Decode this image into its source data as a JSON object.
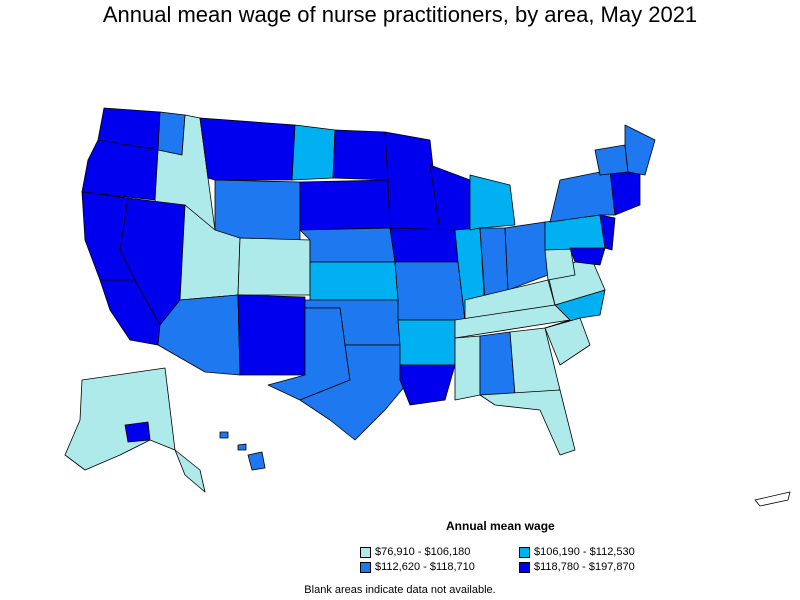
{
  "title": "Annual mean wage of nurse practitioners, by area, May 2021",
  "legend": {
    "title": "Annual mean wage",
    "items": [
      {
        "label": "$76,910 - $106,180",
        "color": "#aeeaea"
      },
      {
        "label": "$106,190 - $112,530",
        "color": "#00b0f0"
      },
      {
        "label": "$112,620 - $118,710",
        "color": "#1e78f0"
      },
      {
        "label": "$118,780 - $197,870",
        "color": "#0000ee"
      }
    ]
  },
  "note": "Blank areas indicate data not available.",
  "colors": {
    "tier1": "#aeeaea",
    "tier2": "#00b0f0",
    "tier3": "#1e78f0",
    "tier4": "#0000ee",
    "border": "#000000"
  }
}
